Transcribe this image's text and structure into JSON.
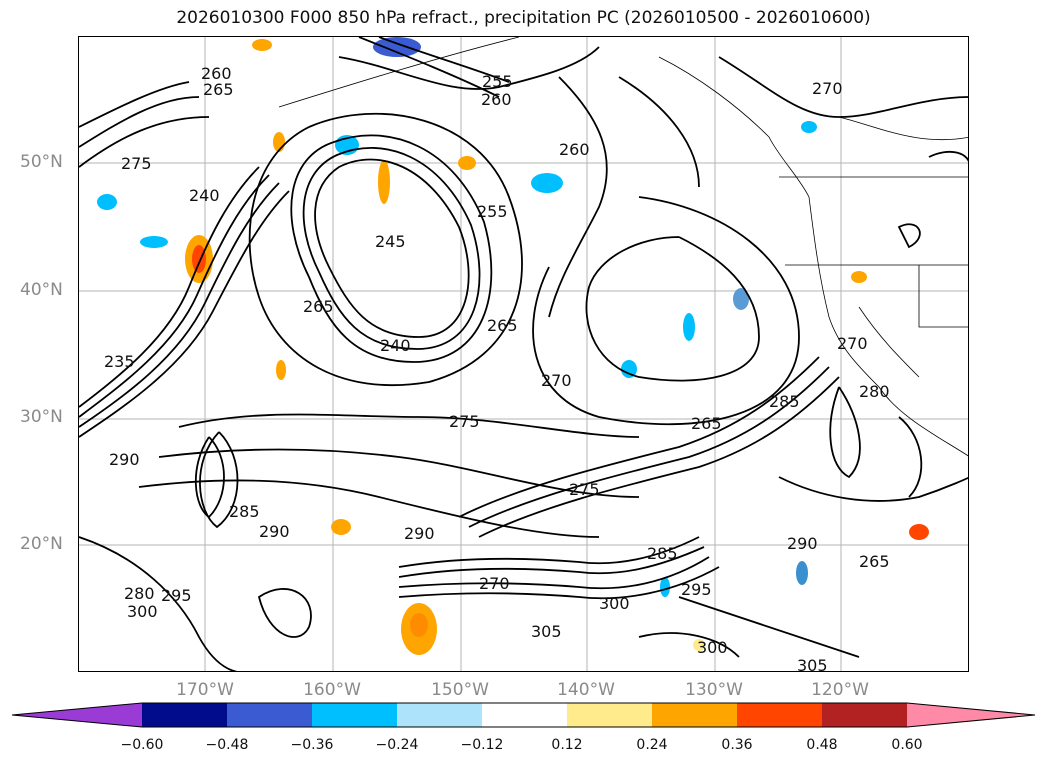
{
  "title": "2026010300 F000 850 hPa refract., precipitation PC (2026010500 - 2026010600)",
  "lat_labels": [
    "50°N",
    "40°N",
    "30°N",
    "20°N"
  ],
  "lon_labels": [
    "170°W",
    "160°W",
    "150°W",
    "140°W",
    "130°W",
    "120°W"
  ],
  "contour_labels": [
    "260",
    "265",
    "255",
    "260",
    "270",
    "275",
    "260",
    "240",
    "245",
    "255",
    "265",
    "240",
    "235",
    "265",
    "270",
    "275",
    "290",
    "280",
    "285",
    "290",
    "295",
    "275",
    "285",
    "290",
    "300",
    "305",
    "300",
    "270",
    "265",
    "285",
    "295",
    "300",
    "305",
    "280",
    "270",
    "290",
    "265"
  ],
  "colorbar": {
    "ticks": [
      "−0.60",
      "−0.48",
      "−0.36",
      "−0.24",
      "−0.12",
      "0.12",
      "0.24",
      "0.36",
      "0.48",
      "0.60"
    ],
    "colors": [
      "#9a3bd6",
      "#000c8c",
      "#3a5bd1",
      "#00bfff",
      "#ade3fb",
      "#ffffff",
      "#ffeb8c",
      "#ffa500",
      "#ff4500",
      "#b22222",
      "#ff8aa8"
    ]
  }
}
